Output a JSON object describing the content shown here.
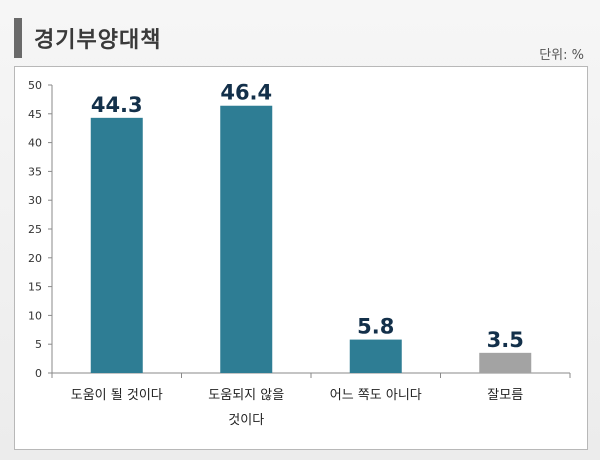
{
  "header": {
    "title": "경기부양대책",
    "unit": "단위: %"
  },
  "chart_data": {
    "type": "bar",
    "categories": [
      "도움이 될 것이다",
      "도움되지 않을 것이다",
      "어느 쪽도 아니다",
      "잘모름"
    ],
    "category_lines": [
      [
        "도움이 될 것이다"
      ],
      [
        "도움되지 않을",
        "것이다"
      ],
      [
        "어느 쪽도 아니다"
      ],
      [
        "잘모름"
      ]
    ],
    "values": [
      44.3,
      46.4,
      5.8,
      3.5
    ],
    "value_labels": [
      "44.3",
      "46.4",
      "5.8",
      "3.5"
    ],
    "bar_colors": [
      "#2e7d94",
      "#2e7d94",
      "#2e7d94",
      "#a3a3a3"
    ],
    "yticks": [
      "0",
      "5",
      "10",
      "15",
      "20",
      "25",
      "30",
      "35",
      "40",
      "45",
      "50"
    ],
    "ylim": [
      0,
      50
    ],
    "grid": false,
    "legend": "none"
  }
}
